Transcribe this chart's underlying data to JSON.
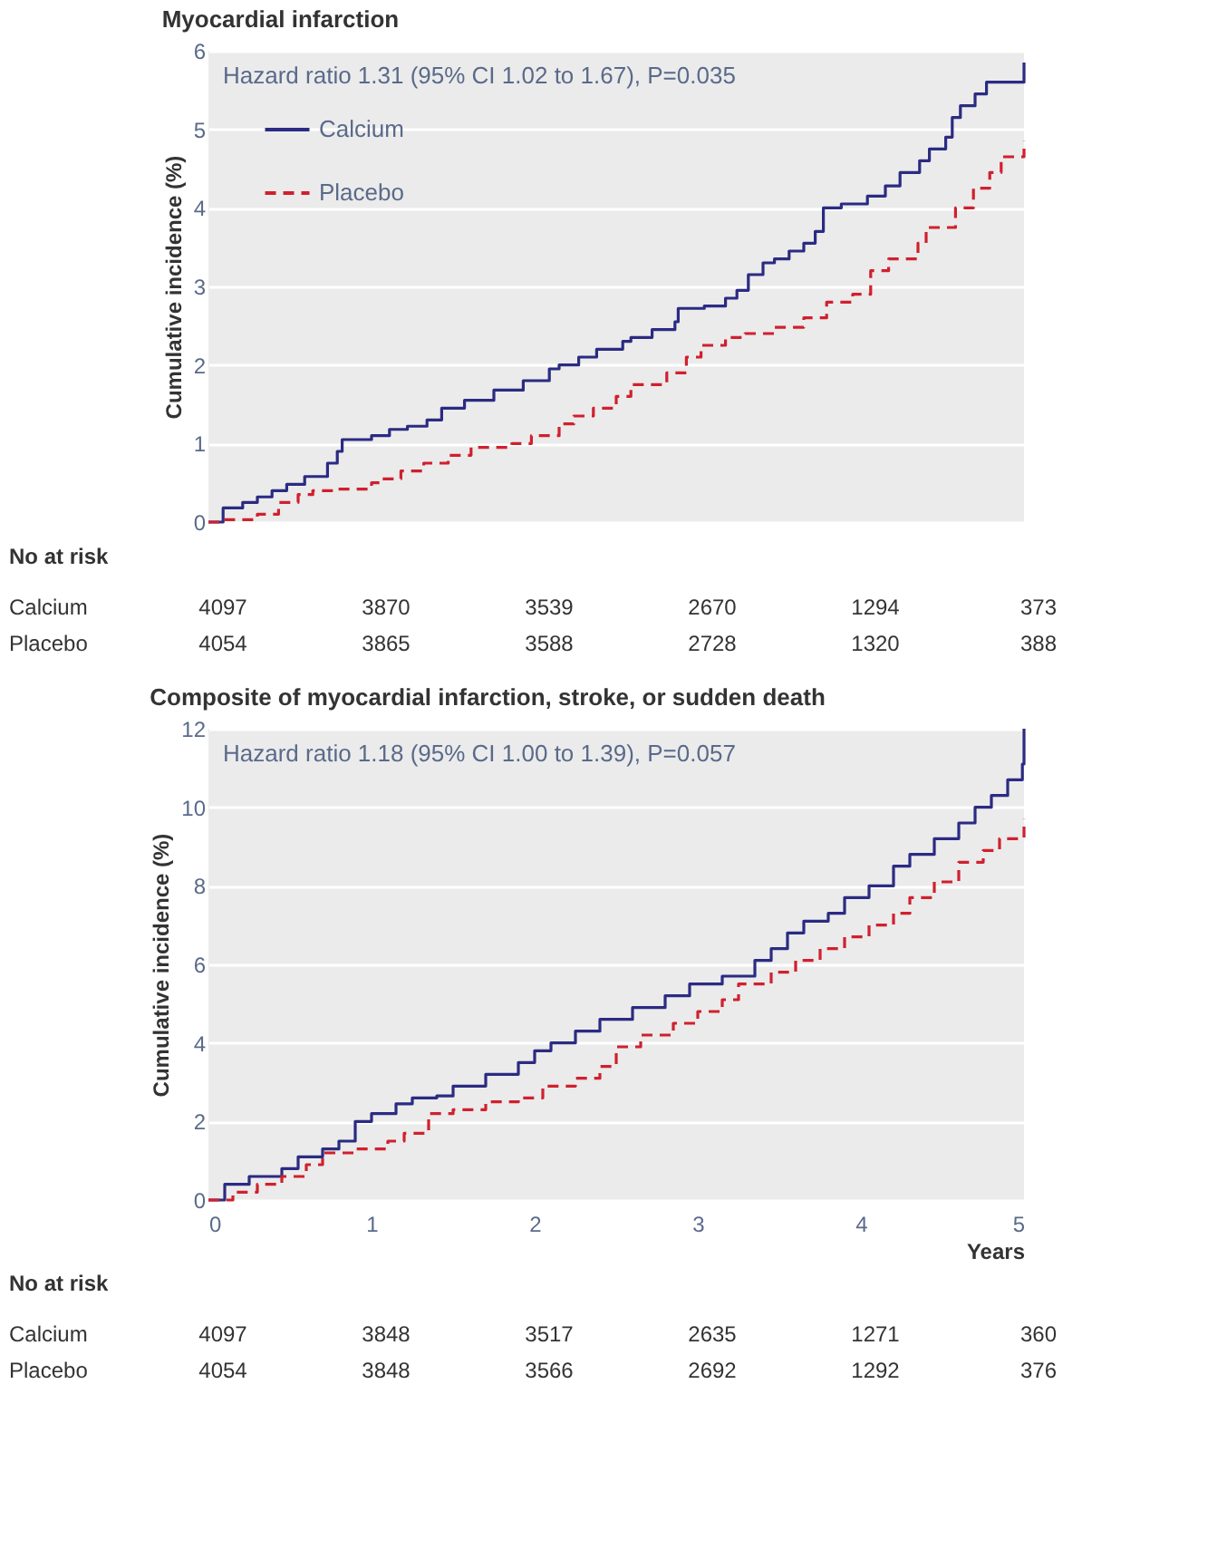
{
  "chart_data": [
    {
      "type": "step",
      "title": "Myocardial infarction",
      "ylabel": "Cumulative incidence (%)",
      "xlim": [
        0,
        5
      ],
      "xticks": [
        0,
        1,
        2,
        3,
        4,
        5
      ],
      "ylim": [
        0,
        6
      ],
      "yticks": [
        0,
        1,
        2,
        3,
        4,
        5,
        6
      ],
      "grid": "y",
      "legend": "top left",
      "tick_labels": "y",
      "marker": "none",
      "annotations": [
        "Hazard ratio 1.31 (95% CI 1.02 to 1.67), P=0.035",
        "No at risk",
        "Calcium",
        "4097",
        "3870",
        "3539",
        "2670",
        "1294",
        "373",
        "Placebo",
        "4054",
        "3865",
        "3588",
        "2728",
        "1320",
        "388"
      ],
      "series": [
        {
          "name": "Calcium",
          "color": "#2b2b83",
          "line_style": "solid",
          "x": [
            0,
            0.09,
            0.21,
            0.3,
            0.39,
            0.48,
            0.59,
            0.73,
            0.79,
            0.82,
            1.0,
            1.11,
            1.22,
            1.34,
            1.43,
            1.57,
            1.75,
            1.93,
            2.09,
            2.15,
            2.27,
            2.38,
            2.54,
            2.59,
            2.72,
            2.86,
            2.88,
            3.04,
            3.17,
            3.24,
            3.31,
            3.4,
            3.47,
            3.56,
            3.65,
            3.72,
            3.77,
            3.88,
            4.04,
            4.15,
            4.24,
            4.36,
            4.42,
            4.52,
            4.56,
            4.61,
            4.7,
            4.77,
            4.99,
            5.0
          ],
          "values": [
            0,
            0.18,
            0.25,
            0.32,
            0.4,
            0.48,
            0.58,
            0.75,
            0.9,
            1.05,
            1.1,
            1.18,
            1.22,
            1.3,
            1.45,
            1.55,
            1.68,
            1.8,
            1.95,
            2.0,
            2.1,
            2.2,
            2.3,
            2.35,
            2.45,
            2.55,
            2.72,
            2.75,
            2.85,
            2.95,
            3.15,
            3.3,
            3.35,
            3.45,
            3.55,
            3.7,
            4.0,
            4.05,
            4.15,
            4.28,
            4.45,
            4.6,
            4.75,
            4.9,
            5.15,
            5.3,
            5.45,
            5.6,
            5.6,
            5.85
          ]
        },
        {
          "name": "Placebo",
          "color": "#d0202e",
          "line_style": "dashed",
          "x": [
            0,
            0.09,
            0.3,
            0.43,
            0.55,
            0.64,
            0.79,
            1.0,
            1.06,
            1.18,
            1.32,
            1.47,
            1.61,
            1.86,
            1.98,
            2.15,
            2.24,
            2.36,
            2.5,
            2.59,
            2.81,
            2.93,
            3.02,
            3.17,
            3.29,
            3.47,
            3.65,
            3.79,
            3.95,
            4.06,
            4.17,
            4.35,
            4.4,
            4.58,
            4.69,
            4.79,
            4.86,
            5.0
          ],
          "values": [
            0,
            0.03,
            0.1,
            0.25,
            0.35,
            0.4,
            0.42,
            0.5,
            0.55,
            0.65,
            0.75,
            0.85,
            0.95,
            1.0,
            1.1,
            1.25,
            1.35,
            1.45,
            1.6,
            1.75,
            1.9,
            2.1,
            2.25,
            2.35,
            2.4,
            2.48,
            2.6,
            2.8,
            2.9,
            3.2,
            3.35,
            3.55,
            3.75,
            4.0,
            4.25,
            4.45,
            4.65,
            4.85
          ]
        }
      ]
    },
    {
      "type": "step",
      "title": "Composite of myocardial infarction, stroke, or sudden death",
      "xlabel": "Years",
      "ylabel": "Cumulative incidence (%)",
      "xlim": [
        0,
        5
      ],
      "xticks": [
        0,
        1,
        2,
        3,
        4,
        5
      ],
      "ylim": [
        0,
        12
      ],
      "yticks": [
        0,
        2,
        4,
        6,
        8,
        10,
        12
      ],
      "grid": "y",
      "marker": "none",
      "annotations": [
        "Hazard ratio 1.18 (95% CI 1.00 to 1.39), P=0.057",
        "No at risk",
        "Calcium",
        "4097",
        "3848",
        "3517",
        "2635",
        "1271",
        "360",
        "Placebo",
        "4054",
        "3848",
        "3566",
        "2692",
        "1292",
        "376"
      ],
      "series": [
        {
          "color": "#2b2b83",
          "line_style": "solid",
          "x": [
            0,
            0.1,
            0.25,
            0.45,
            0.55,
            0.7,
            0.8,
            0.9,
            1.0,
            1.15,
            1.25,
            1.4,
            1.5,
            1.7,
            1.9,
            2.0,
            2.1,
            2.25,
            2.4,
            2.6,
            2.8,
            2.95,
            3.15,
            3.35,
            3.45,
            3.55,
            3.65,
            3.8,
            3.9,
            4.05,
            4.2,
            4.3,
            4.45,
            4.6,
            4.7,
            4.8,
            4.9,
            4.99,
            5.0
          ],
          "values": [
            0,
            0.4,
            0.6,
            0.8,
            1.1,
            1.3,
            1.5,
            2.0,
            2.2,
            2.45,
            2.6,
            2.65,
            2.9,
            3.2,
            3.5,
            3.8,
            4.0,
            4.3,
            4.6,
            4.9,
            5.2,
            5.5,
            5.7,
            6.1,
            6.4,
            6.8,
            7.1,
            7.3,
            7.7,
            8.0,
            8.5,
            8.8,
            9.2,
            9.6,
            10.0,
            10.3,
            10.7,
            11.1,
            12.0
          ]
        },
        {
          "color": "#d0202e",
          "line_style": "dashed",
          "x": [
            0,
            0.15,
            0.3,
            0.45,
            0.6,
            0.7,
            0.9,
            1.1,
            1.2,
            1.35,
            1.5,
            1.7,
            1.9,
            2.05,
            2.25,
            2.4,
            2.5,
            2.65,
            2.85,
            3.0,
            3.15,
            3.25,
            3.45,
            3.6,
            3.75,
            3.9,
            4.05,
            4.2,
            4.3,
            4.45,
            4.6,
            4.75,
            4.85,
            5.0
          ],
          "values": [
            0,
            0.2,
            0.4,
            0.6,
            0.9,
            1.2,
            1.3,
            1.5,
            1.7,
            2.2,
            2.3,
            2.5,
            2.6,
            2.9,
            3.1,
            3.4,
            3.9,
            4.2,
            4.5,
            4.8,
            5.1,
            5.5,
            5.8,
            6.1,
            6.4,
            6.7,
            7.0,
            7.3,
            7.7,
            8.1,
            8.6,
            8.9,
            9.2,
            9.7
          ]
        }
      ]
    }
  ]
}
